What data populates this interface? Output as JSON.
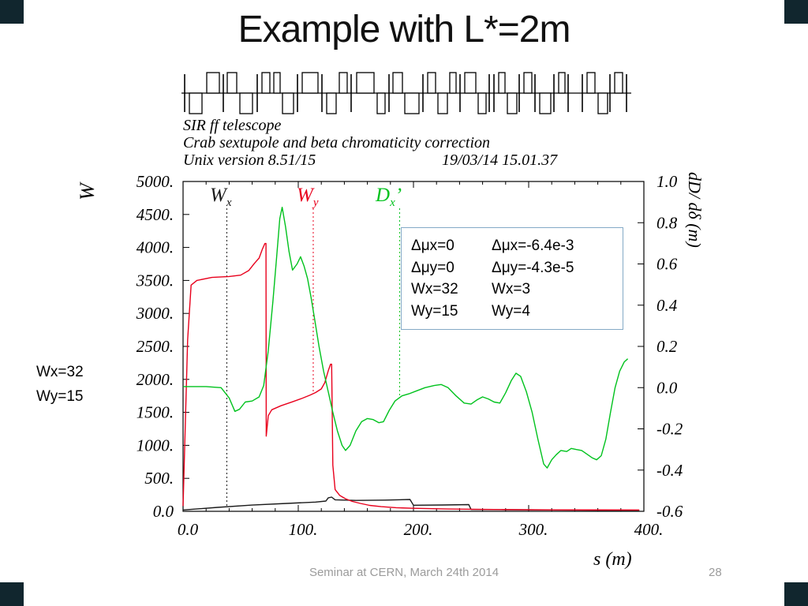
{
  "slide": {
    "title": "Example with L*=2m",
    "footer": "Seminar at CERN, March 24th 2014",
    "page_number": "28"
  },
  "side_label": {
    "line1": "Wx=32",
    "line2": "Wy=15"
  },
  "annotation_box": {
    "rows": [
      [
        "Δμx=0",
        "Δμx=-6.4e-3"
      ],
      [
        "Δμy=0",
        "Δμy=-4.3e-5"
      ],
      [
        "Wx=32",
        "Wx=3"
      ],
      [
        "Wy=15",
        "Wy=4"
      ]
    ]
  },
  "chart_data": {
    "type": "line",
    "header": {
      "line1": "SIR ff telescope",
      "line2": "Crab sextupole and beta chromaticity correction",
      "line3_left": "Unix version 8.51/15",
      "line3_right": "19/03/14  15.01.37"
    },
    "x_axis": {
      "label": "s (m)",
      "range": [
        0,
        400
      ],
      "tick_values": [
        0,
        100,
        200,
        300,
        400
      ],
      "ticks": [
        "0.0",
        "100.",
        "200.",
        "300.",
        "400."
      ],
      "minor_step": 20
    },
    "y_left": {
      "label": "W",
      "range": [
        0,
        5000
      ],
      "tick_values": [
        5000,
        4500,
        4000,
        3500,
        3000,
        2500,
        2000,
        1500,
        1000,
        500,
        0
      ],
      "ticks": [
        "5000.",
        "4500.",
        "4000.",
        "3500.",
        "3000.",
        "2500.",
        "2000.",
        "1500.",
        "1000.",
        "500.",
        "0.0"
      ]
    },
    "y_right": {
      "label": "dD/ dδ (m)",
      "range": [
        -0.6,
        1.0
      ],
      "tick_values": [
        1.0,
        0.8,
        0.6,
        0.4,
        0.2,
        0.0,
        -0.2,
        -0.4,
        -0.6
      ],
      "ticks": [
        "1.0",
        "0.8",
        "0.6",
        "0.4",
        "0.2",
        "0.0",
        "-0.2",
        "-0.4",
        "-0.6"
      ]
    },
    "legend": [
      {
        "main": "W",
        "sub": "x",
        "prime": "",
        "color": "#1a1a1a",
        "marker_s": 38
      },
      {
        "main": "W",
        "sub": "y",
        "prime": "",
        "color": "#e8001c",
        "marker_s": 113
      },
      {
        "main": "D",
        "sub": "x",
        "prime": "’",
        "color": "#00c21d",
        "marker_s": 188
      }
    ],
    "series": [
      {
        "name": "Wx",
        "axis": "left",
        "color": "#1a1a1a",
        "points": [
          [
            0,
            20
          ],
          [
            30,
            60
          ],
          [
            60,
            95
          ],
          [
            90,
            120
          ],
          [
            115,
            140
          ],
          [
            124,
            155
          ],
          [
            126,
            205
          ],
          [
            129,
            215
          ],
          [
            132,
            175
          ],
          [
            150,
            165
          ],
          [
            175,
            170
          ],
          [
            197,
            180
          ],
          [
            200,
            92
          ],
          [
            225,
            96
          ],
          [
            248,
            102
          ],
          [
            250,
            28
          ],
          [
            280,
            24
          ],
          [
            320,
            20
          ],
          [
            360,
            16
          ],
          [
            396,
            16
          ]
        ]
      },
      {
        "name": "Wy",
        "axis": "left",
        "color": "#e8001c",
        "points": [
          [
            0,
            80
          ],
          [
            4,
            2600
          ],
          [
            7,
            3430
          ],
          [
            12,
            3500
          ],
          [
            25,
            3545
          ],
          [
            40,
            3560
          ],
          [
            50,
            3580
          ],
          [
            57,
            3650
          ],
          [
            62,
            3760
          ],
          [
            66,
            3840
          ],
          [
            69,
            3980
          ],
          [
            71,
            4060
          ],
          [
            72,
            4060
          ],
          [
            72.2,
            1140
          ],
          [
            74,
            1450
          ],
          [
            77,
            1540
          ],
          [
            85,
            1600
          ],
          [
            95,
            1660
          ],
          [
            103,
            1710
          ],
          [
            110,
            1760
          ],
          [
            115,
            1800
          ],
          [
            120,
            1855
          ],
          [
            123,
            1950
          ],
          [
            126,
            2130
          ],
          [
            128,
            2230
          ],
          [
            129,
            2230
          ],
          [
            130,
            700
          ],
          [
            132,
            330
          ],
          [
            136,
            240
          ],
          [
            141,
            190
          ],
          [
            147,
            150
          ],
          [
            154,
            120
          ],
          [
            162,
            90
          ],
          [
            172,
            70
          ],
          [
            185,
            55
          ],
          [
            200,
            45
          ],
          [
            230,
            35
          ],
          [
            270,
            28
          ],
          [
            320,
            22
          ],
          [
            396,
            20
          ]
        ]
      },
      {
        "name": "Dx'",
        "axis": "right",
        "color": "#00c21d",
        "points": [
          [
            0,
            0.005
          ],
          [
            20,
            0.005
          ],
          [
            33,
            0.0
          ],
          [
            40,
            -0.05
          ],
          [
            45,
            -0.115
          ],
          [
            49,
            -0.105
          ],
          [
            54,
            -0.07
          ],
          [
            60,
            -0.065
          ],
          [
            66,
            -0.045
          ],
          [
            70,
            0.01
          ],
          [
            74,
            0.18
          ],
          [
            78,
            0.42
          ],
          [
            81,
            0.62
          ],
          [
            84,
            0.82
          ],
          [
            86,
            0.875
          ],
          [
            89,
            0.78
          ],
          [
            92,
            0.66
          ],
          [
            95,
            0.57
          ],
          [
            99,
            0.6
          ],
          [
            102,
            0.635
          ],
          [
            105,
            0.59
          ],
          [
            108,
            0.53
          ],
          [
            111,
            0.44
          ],
          [
            114,
            0.34
          ],
          [
            118,
            0.2
          ],
          [
            122,
            0.08
          ],
          [
            126,
            -0.02
          ],
          [
            130,
            -0.12
          ],
          [
            134,
            -0.21
          ],
          [
            138,
            -0.28
          ],
          [
            141,
            -0.305
          ],
          [
            145,
            -0.28
          ],
          [
            150,
            -0.21
          ],
          [
            155,
            -0.165
          ],
          [
            160,
            -0.15
          ],
          [
            165,
            -0.155
          ],
          [
            170,
            -0.17
          ],
          [
            174,
            -0.165
          ],
          [
            179,
            -0.11
          ],
          [
            184,
            -0.065
          ],
          [
            190,
            -0.04
          ],
          [
            196,
            -0.03
          ],
          [
            203,
            -0.015
          ],
          [
            210,
            0.0
          ],
          [
            218,
            0.01
          ],
          [
            224,
            0.015
          ],
          [
            230,
            0.0
          ],
          [
            237,
            -0.04
          ],
          [
            244,
            -0.075
          ],
          [
            250,
            -0.08
          ],
          [
            255,
            -0.06
          ],
          [
            260,
            -0.045
          ],
          [
            265,
            -0.055
          ],
          [
            270,
            -0.07
          ],
          [
            275,
            -0.075
          ],
          [
            280,
            -0.025
          ],
          [
            285,
            0.035
          ],
          [
            289,
            0.07
          ],
          [
            293,
            0.055
          ],
          [
            298,
            -0.02
          ],
          [
            303,
            -0.12
          ],
          [
            308,
            -0.25
          ],
          [
            313,
            -0.37
          ],
          [
            316,
            -0.39
          ],
          [
            320,
            -0.35
          ],
          [
            324,
            -0.325
          ],
          [
            328,
            -0.305
          ],
          [
            333,
            -0.31
          ],
          [
            337,
            -0.295
          ],
          [
            341,
            -0.3
          ],
          [
            346,
            -0.305
          ],
          [
            350,
            -0.32
          ],
          [
            355,
            -0.34
          ],
          [
            359,
            -0.35
          ],
          [
            363,
            -0.33
          ],
          [
            367,
            -0.25
          ],
          [
            371,
            -0.12
          ],
          [
            375,
            0.0
          ],
          [
            379,
            0.08
          ],
          [
            383,
            0.125
          ],
          [
            386,
            0.14
          ]
        ]
      }
    ]
  },
  "lattice": {
    "elements": [
      [
        234,
        0,
        "l"
      ],
      [
        240,
        16,
        "d"
      ],
      [
        262,
        16,
        "u"
      ],
      [
        283,
        0,
        "l"
      ],
      [
        288,
        12,
        "u"
      ],
      [
        304,
        16,
        "d"
      ],
      [
        326,
        0,
        "l"
      ],
      [
        332,
        10,
        "u"
      ],
      [
        347,
        8,
        "u"
      ],
      [
        358,
        14,
        "d"
      ],
      [
        377,
        0,
        "l"
      ],
      [
        383,
        20,
        "u"
      ],
      [
        408,
        0,
        "l"
      ],
      [
        414,
        12,
        "d"
      ],
      [
        430,
        10,
        "u"
      ],
      [
        445,
        0,
        "l"
      ],
      [
        452,
        22,
        "u"
      ],
      [
        478,
        10,
        "d"
      ],
      [
        493,
        0,
        "l"
      ],
      [
        498,
        12,
        "u"
      ],
      [
        513,
        18,
        "d"
      ],
      [
        536,
        0,
        "l"
      ],
      [
        542,
        10,
        "u"
      ],
      [
        555,
        12,
        "d"
      ],
      [
        570,
        8,
        "u"
      ],
      [
        583,
        0,
        "l"
      ],
      [
        589,
        14,
        "u"
      ],
      [
        606,
        10,
        "d"
      ],
      [
        620,
        0,
        "l"
      ],
      [
        626,
        0,
        "l"
      ],
      [
        632,
        8,
        "u"
      ],
      [
        643,
        12,
        "d"
      ],
      [
        658,
        0,
        "l"
      ],
      [
        664,
        10,
        "u"
      ],
      [
        678,
        0,
        "l"
      ],
      [
        684,
        14,
        "d"
      ],
      [
        702,
        0,
        "l"
      ],
      [
        708,
        8,
        "u"
      ],
      [
        720,
        0,
        "l"
      ],
      [
        738,
        0,
        "l"
      ],
      [
        744,
        10,
        "u"
      ],
      [
        758,
        12,
        "d"
      ],
      [
        773,
        0,
        "l"
      ],
      [
        779,
        10,
        "u"
      ],
      [
        794,
        0,
        "l"
      ]
    ]
  }
}
